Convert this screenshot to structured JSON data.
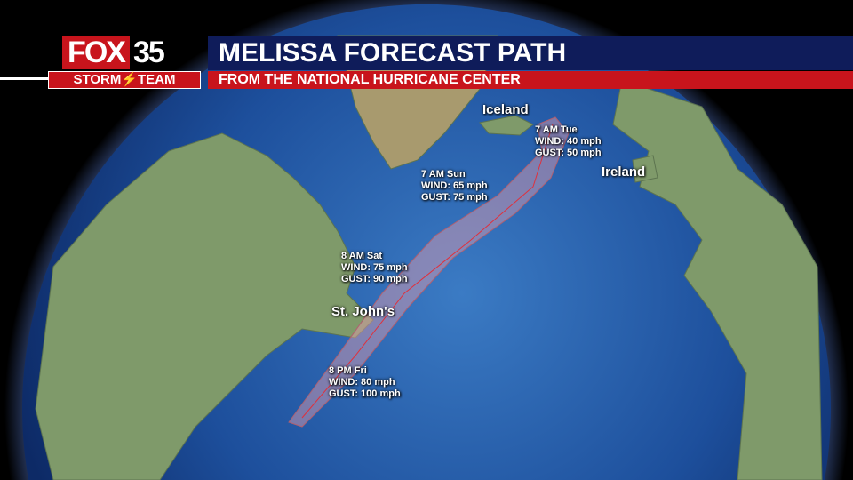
{
  "header": {
    "logo": {
      "brand": "FOX",
      "number": "35",
      "team": "STORM⚡TEAM"
    },
    "title": "MELISSA FORECAST PATH",
    "subtitle": "FROM THE NATIONAL HURRICANE CENTER"
  },
  "places": {
    "iceland": "Iceland",
    "ireland": "Ireland",
    "st_johns": "St. John's"
  },
  "forecast_points": [
    {
      "time": "8 PM Fri",
      "wind": "WIND: 80 mph",
      "gust": "GUST: 100 mph"
    },
    {
      "time": "8 AM Sat",
      "wind": "WIND: 75 mph",
      "gust": "GUST: 90 mph"
    },
    {
      "time": "7 AM Sun",
      "wind": "WIND: 65 mph",
      "gust": "GUST: 75 mph"
    },
    {
      "time": "7 AM Tue",
      "wind": "WIND: 40 mph",
      "gust": "GUST: 50 mph"
    }
  ],
  "colors": {
    "brand_red": "#c8141c",
    "brand_navy": "#0f1c5a",
    "cone": "#e8a0b0",
    "track": "#e0303c",
    "ocean": "#1d4f9c",
    "land": "#7f9a6a"
  }
}
